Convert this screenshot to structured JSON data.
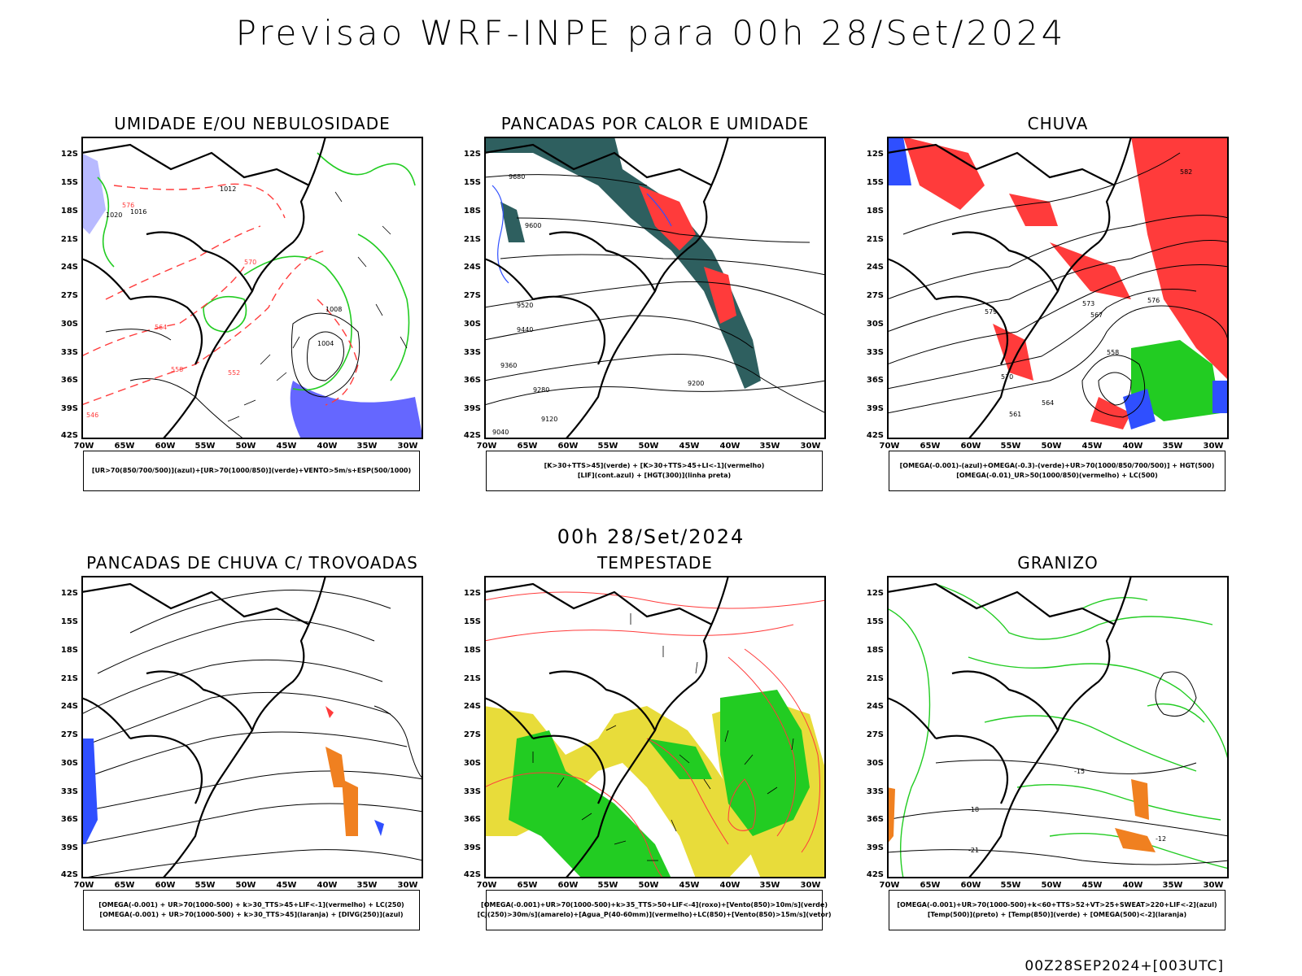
{
  "header": {
    "title": "Previsao WRF-INPE  para 00h 28/Set/2024"
  },
  "middle_title": "00h 28/Set/2024",
  "footer_stamp": "00Z28SEP2024+[003UTC]",
  "axes": {
    "lat_labels": [
      "12S",
      "15S",
      "18S",
      "21S",
      "24S",
      "27S",
      "30S",
      "33S",
      "36S",
      "39S",
      "42S"
    ],
    "lon_labels": [
      "70W",
      "65W",
      "60W",
      "55W",
      "50W",
      "45W",
      "40W",
      "35W",
      "30W"
    ]
  },
  "colors": {
    "background": "#ffffff",
    "coast": "#000000",
    "red": "#ff3b3b",
    "green": "#22cc22",
    "blue": "#2f4fff",
    "teal": "#2e5f5f",
    "yellow": "#e8dc3a",
    "orange": "#f08020"
  },
  "panels": [
    {
      "title": "UMIDADE E/OU NEBULOSIDADE",
      "legend": [
        "[UR>70(850/700/500)](azul)+[UR>70(1000/850)](verde)+VENTO>5m/s+ESP(500/1000)"
      ]
    },
    {
      "title": "PANCADAS POR CALOR E UMIDADE",
      "legend": [
        "[K>30+TTS>45](verde) + [K>30+TTS>45+LI<-1](vermelho)",
        "[LIF](cont.azul) + [HGT(300)](linha preta)"
      ]
    },
    {
      "title": "CHUVA",
      "legend": [
        "[OMEGA(-0.001)-(azul)+OMEGA(-0.3)-(verde)+UR>70(1000/850/700/500)] + HGT(500)",
        "[OMEGA(-0.01)_UR>50(1000/850)(vermelho) + LC(500)"
      ]
    },
    {
      "title": "PANCADAS DE CHUVA C/ TROVOADAS",
      "legend": [
        "[OMEGA(-0.001) + UR>70(1000-500) + k>30_TTS>45+LIF<-1](vermelho) + LC(250)",
        "[OMEGA(-0.001) + UR>70(1000-500) + k>30_TTS>45](laranja) + [DIVG(250)](azul)"
      ]
    },
    {
      "title": "TEMPESTADE",
      "legend": [
        "[OMEGA(-0.001)+UR>70(1000-500)+k>35_TTS>50+LIF<-4](roxo)+[Vento(850)>10m/s](verde)",
        "[CJ(250)>30m/s](amarelo)+[Agua_P(40-60mm)](vermelho)+LC(850)+[Vento(850)>15m/s](vetor)"
      ]
    },
    {
      "title": "GRANIZO",
      "legend": [
        "[OMEGA(-0.001)+UR>70(1000-500)+k<60+TTS>52+VT>25+SWEAT>220+LIF<-2](azul)",
        "[Temp(500)](preto) + [Temp(850)](verde) + [OMEGA(500)<-2](laranja)"
      ]
    }
  ],
  "contour_labels": {
    "p1": [
      "1012",
      "1016",
      "1020",
      "576",
      "570",
      "564",
      "558",
      "552",
      "546",
      "1004",
      "1008"
    ],
    "p2": [
      "9680",
      "9600",
      "9520",
      "9440",
      "9360",
      "9280",
      "9200",
      "9120",
      "9040"
    ],
    "p3": [
      "582",
      "579",
      "576",
      "573",
      "570",
      "567",
      "564",
      "561",
      "558"
    ],
    "p6": [
      "-15",
      "-12",
      "-18",
      "-21"
    ]
  }
}
